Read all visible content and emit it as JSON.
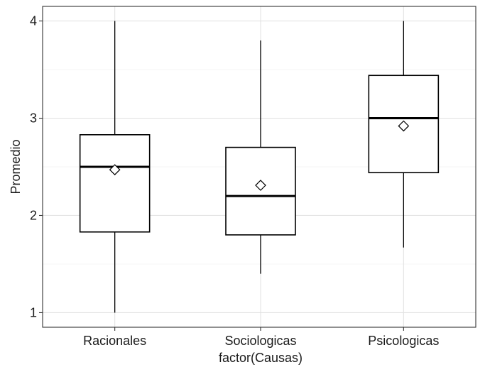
{
  "chart_data": {
    "type": "boxplot",
    "title": "",
    "xlabel": "factor(Causas)",
    "ylabel": "Promedio",
    "ylim": [
      0.85,
      4.15
    ],
    "yticks": [
      1,
      2,
      3,
      4
    ],
    "grid": true,
    "categories": [
      "Racionales",
      "Sociologicas",
      "Psicologicas"
    ],
    "boxes": [
      {
        "category": "Racionales",
        "min": 1.0,
        "q1": 1.83,
        "median": 2.5,
        "q3": 2.83,
        "max": 4.0,
        "mean": 2.47
      },
      {
        "category": "Sociologicas",
        "min": 1.4,
        "q1": 1.8,
        "median": 2.2,
        "q3": 2.7,
        "max": 3.8,
        "mean": 2.31
      },
      {
        "category": "Psicologicas",
        "min": 1.67,
        "q1": 2.44,
        "median": 3.0,
        "q3": 3.44,
        "max": 4.0,
        "mean": 2.92
      }
    ]
  }
}
